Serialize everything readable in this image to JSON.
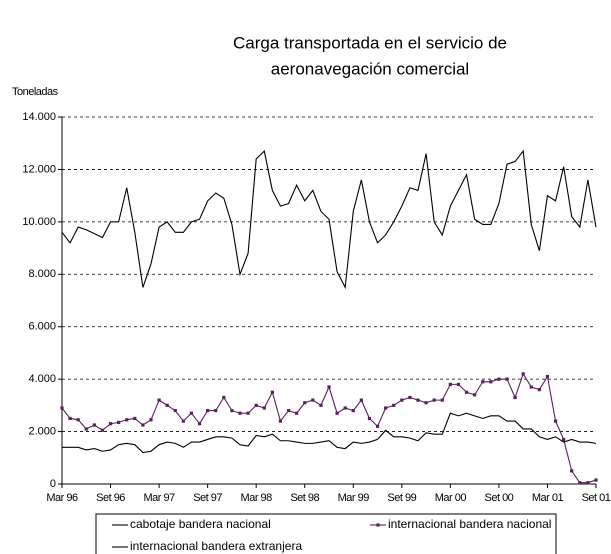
{
  "chart_data": {
    "type": "line",
    "title": [
      "Carga transportada en el servicio de",
      "aeronavegación comercial"
    ],
    "ylabel": "Toneladas",
    "categories": [
      "Mar 96",
      null,
      null,
      null,
      null,
      null,
      "Set 96",
      null,
      null,
      null,
      null,
      null,
      "Mar 97",
      null,
      null,
      null,
      null,
      null,
      "Set 97",
      null,
      null,
      null,
      null,
      null,
      "Mar 98",
      null,
      null,
      null,
      null,
      null,
      "Set 98",
      null,
      null,
      null,
      null,
      null,
      "Mar 99",
      null,
      null,
      null,
      null,
      null,
      "Set 99",
      null,
      null,
      null,
      null,
      null,
      "Mar 00",
      null,
      null,
      null,
      null,
      null,
      "Set 00",
      null,
      null,
      null,
      null,
      null,
      "Mar 01",
      null,
      null,
      null,
      null,
      null,
      "Set 01"
    ],
    "series": [
      {
        "name": "cabotaje bandera nacional",
        "color": "#000000",
        "marker": false,
        "values": [
          9600,
          9200,
          9800,
          9700,
          9550,
          9400,
          10000,
          10000,
          11300,
          9600,
          7500,
          8400,
          9800,
          10000,
          9600,
          9600,
          10000,
          10100,
          10800,
          11100,
          10900,
          9900,
          8000,
          8800,
          12400,
          12700,
          11200,
          10600,
          10700,
          11400,
          10800,
          11200,
          10400,
          10100,
          8100,
          7500,
          10400,
          11600,
          10000,
          9200,
          9500,
          10000,
          10600,
          11300,
          11200,
          12600,
          10000,
          9500,
          10600,
          11200,
          11800,
          10100,
          9900,
          9900,
          10700,
          12200,
          12300,
          12700,
          9900,
          8900,
          11000,
          10800,
          12100,
          10200,
          9800,
          11600,
          9800
        ]
      },
      {
        "name": "internacional bandera nacional",
        "color": "#5a1f5e",
        "marker": true,
        "values": [
          2900,
          2500,
          2450,
          2100,
          2250,
          2050,
          2300,
          2350,
          2450,
          2500,
          2250,
          2450,
          3200,
          3000,
          2800,
          2400,
          2700,
          2300,
          2800,
          2800,
          3300,
          2800,
          2700,
          2700,
          3000,
          2900,
          3500,
          2400,
          2800,
          2700,
          3100,
          3200,
          3000,
          3700,
          2700,
          2900,
          2800,
          3200,
          2500,
          2200,
          2900,
          3000,
          3200,
          3300,
          3200,
          3100,
          3200,
          3200,
          3800,
          3800,
          3500,
          3400,
          3900,
          3900,
          4000,
          4000,
          3300,
          4200,
          3700,
          3600,
          4100,
          2400,
          1700,
          500,
          50,
          50,
          150
        ]
      },
      {
        "name": "internacional bandera extranjera",
        "color": "#000000",
        "marker": false,
        "values": [
          1400,
          1400,
          1400,
          1300,
          1350,
          1250,
          1300,
          1500,
          1550,
          1500,
          1200,
          1250,
          1500,
          1600,
          1550,
          1400,
          1600,
          1600,
          1700,
          1800,
          1800,
          1750,
          1500,
          1450,
          1850,
          1800,
          1900,
          1650,
          1650,
          1600,
          1550,
          1550,
          1600,
          1650,
          1400,
          1350,
          1600,
          1550,
          1600,
          1700,
          2050,
          1800,
          1800,
          1750,
          1650,
          1950,
          1900,
          1900,
          2700,
          2600,
          2700,
          2600,
          2500,
          2600,
          2600,
          2400,
          2400,
          2100,
          2100,
          1800,
          1700,
          1800,
          1600,
          1700,
          1600,
          1600,
          1550
        ]
      }
    ],
    "ylim": [
      0,
      14000
    ],
    "yticks": [
      0,
      {
        "value": 2000,
        "label": "2.000"
      },
      {
        "value": 4000,
        "label": "4.000"
      },
      {
        "value": 6000,
        "label": "6.000"
      },
      {
        "value": 8000,
        "label": "8.000"
      },
      {
        "value": 10000,
        "label": "10.000"
      },
      {
        "value": 12000,
        "label": "12.000"
      },
      {
        "value": 14000,
        "label": "14.000"
      }
    ],
    "grid": true
  }
}
